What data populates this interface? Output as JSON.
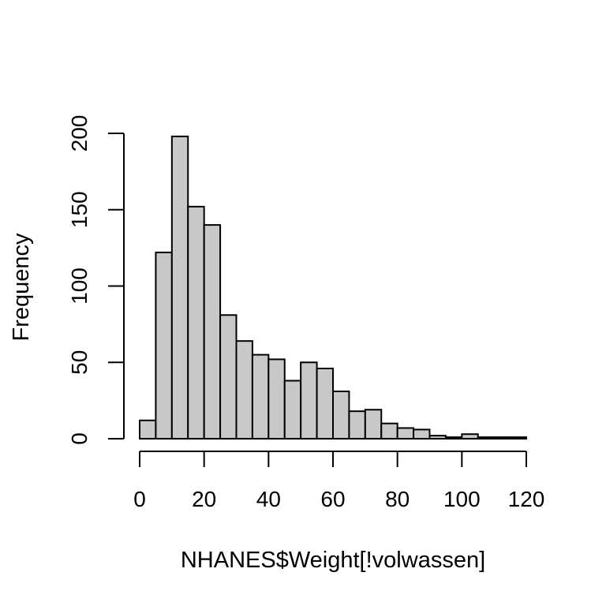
{
  "chart_data": {
    "type": "bar",
    "title": "",
    "xlabel": "NHANES$Weight[!volwassen]",
    "ylabel": "Frequency",
    "bin_edges": [
      0,
      5,
      10,
      15,
      20,
      25,
      30,
      35,
      40,
      45,
      50,
      55,
      60,
      65,
      70,
      75,
      80,
      85,
      90,
      95,
      100,
      105,
      110,
      115,
      120
    ],
    "values": [
      12,
      122,
      198,
      152,
      140,
      81,
      64,
      55,
      52,
      38,
      50,
      46,
      31,
      18,
      19,
      10,
      7,
      6,
      2,
      1,
      3,
      1,
      1,
      1
    ],
    "xlim": [
      0,
      120
    ],
    "ylim": [
      0,
      200
    ],
    "xticks": [
      0,
      20,
      40,
      60,
      80,
      100,
      120
    ],
    "yticks": [
      0,
      50,
      100,
      150,
      200
    ],
    "grid": false,
    "colors": {
      "bar_fill": "#c8c8c8",
      "bar_stroke": "#000000"
    }
  }
}
